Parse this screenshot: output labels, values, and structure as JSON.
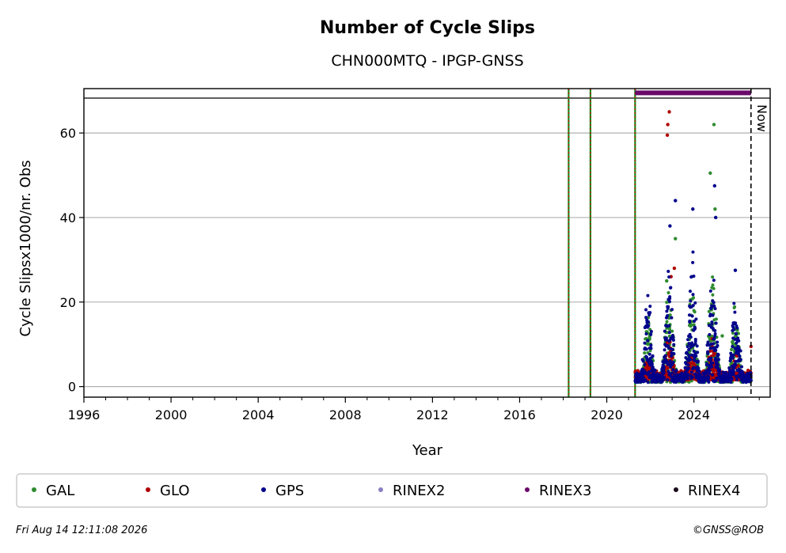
{
  "chart_data": {
    "type": "scatter",
    "title": "Number of Cycle Slips",
    "subtitle": "CHN000MTQ - IPGP-GNSS",
    "xlabel": "Year",
    "ylabel": "Cycle Slipsx1000/nr. Obs",
    "xlim": [
      1996.0,
      2027.5
    ],
    "ylim": [
      -2.5,
      70.5
    ],
    "x_ticks": [
      1996,
      2000,
      2004,
      2008,
      2012,
      2016,
      2020,
      2024
    ],
    "y_ticks": [
      0,
      20,
      40,
      60
    ],
    "grid": "horizontal",
    "legend_position": "bottom",
    "now_label": "Now",
    "now_year": 2026.62,
    "event_lines": [
      2018.25,
      2019.25,
      2021.3
    ],
    "rinex_bar": {
      "series": "RINEX3",
      "start": 2021.3,
      "end": 2026.62,
      "y": 69.5
    },
    "series": [
      {
        "name": "GAL",
        "color": "#2e8b2e",
        "peaks": [
          [
            2021.9,
            18
          ],
          [
            2022.85,
            30
          ],
          [
            2023.9,
            28
          ],
          [
            2024.85,
            32
          ],
          [
            2025.9,
            22
          ]
        ],
        "outliers": [
          [
            2022.75,
            25
          ],
          [
            2023.15,
            35
          ],
          [
            2024.75,
            50.5
          ],
          [
            2024.92,
            62
          ],
          [
            2024.97,
            42
          ],
          [
            2025.3,
            12
          ]
        ]
      },
      {
        "name": "GLO",
        "color": "#b00000",
        "peaks": [
          [
            2021.9,
            8
          ],
          [
            2022.85,
            14
          ],
          [
            2023.9,
            10
          ],
          [
            2024.85,
            12
          ],
          [
            2025.9,
            8
          ]
        ],
        "outliers": [
          [
            2022.78,
            59.5
          ],
          [
            2022.8,
            62
          ],
          [
            2022.87,
            65
          ],
          [
            2022.95,
            26
          ],
          [
            2023.1,
            28
          ],
          [
            2026.62,
            9.5
          ]
        ]
      },
      {
        "name": "GPS",
        "color": "#00008b",
        "peaks": [
          [
            2021.9,
            26
          ],
          [
            2022.85,
            33
          ],
          [
            2023.9,
            37
          ],
          [
            2024.85,
            35
          ],
          [
            2025.9,
            26
          ]
        ],
        "outliers": [
          [
            2022.9,
            38
          ],
          [
            2023.15,
            44
          ],
          [
            2023.95,
            42
          ],
          [
            2024.95,
            47.5
          ],
          [
            2025.0,
            40
          ],
          [
            2025.9,
            27.5
          ]
        ]
      },
      {
        "name": "RINEX2",
        "color": "#8a7fc4",
        "peaks": [],
        "outliers": []
      },
      {
        "name": "RINEX3",
        "color": "#6a0a6a",
        "peaks": [],
        "outliers": []
      },
      {
        "name": "RINEX4",
        "color": "#1a0a1a",
        "peaks": [],
        "outliers": []
      }
    ],
    "data_start": 2021.3
  },
  "footer": {
    "timestamp": "Fri Aug 14 12:11:08 2026",
    "credit": "©GNSS@ROB"
  }
}
